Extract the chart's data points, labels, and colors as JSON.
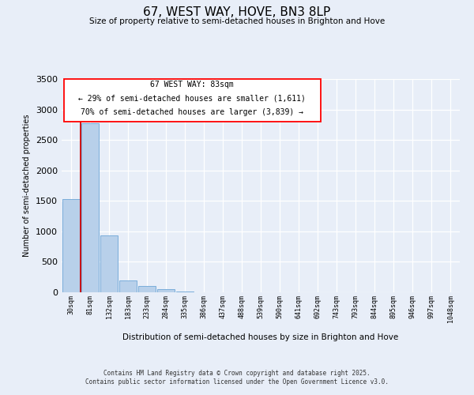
{
  "title": "67, WEST WAY, HOVE, BN3 8LP",
  "subtitle": "Size of property relative to semi-detached houses in Brighton and Hove",
  "xlabel": "Distribution of semi-detached houses by size in Brighton and Hove",
  "ylabel": "Number of semi-detached properties",
  "footer_line1": "Contains HM Land Registry data © Crown copyright and database right 2025.",
  "footer_line2": "Contains public sector information licensed under the Open Government Licence v3.0.",
  "annotation_title": "67 WEST WAY: 83sqm",
  "annotation_line1": "← 29% of semi-detached houses are smaller (1,611)",
  "annotation_line2": "70% of semi-detached houses are larger (3,839) →",
  "bar_labels": [
    "30sqm",
    "81sqm",
    "132sqm",
    "183sqm",
    "233sqm",
    "284sqm",
    "335sqm",
    "386sqm",
    "437sqm",
    "488sqm",
    "539sqm",
    "590sqm",
    "641sqm",
    "692sqm",
    "743sqm",
    "793sqm",
    "844sqm",
    "895sqm",
    "946sqm",
    "997sqm",
    "1048sqm"
  ],
  "bar_values": [
    1530,
    2780,
    930,
    200,
    100,
    55,
    8,
    0,
    0,
    0,
    0,
    0,
    0,
    0,
    0,
    0,
    0,
    0,
    0,
    0,
    0
  ],
  "bar_color": "#b8d0ea",
  "bar_edge_color": "#7aadda",
  "property_line_color": "#cc0000",
  "ylim_max": 3500,
  "yticks": [
    0,
    500,
    1000,
    1500,
    2000,
    2500,
    3000,
    3500
  ],
  "background_color": "#e8eef8"
}
